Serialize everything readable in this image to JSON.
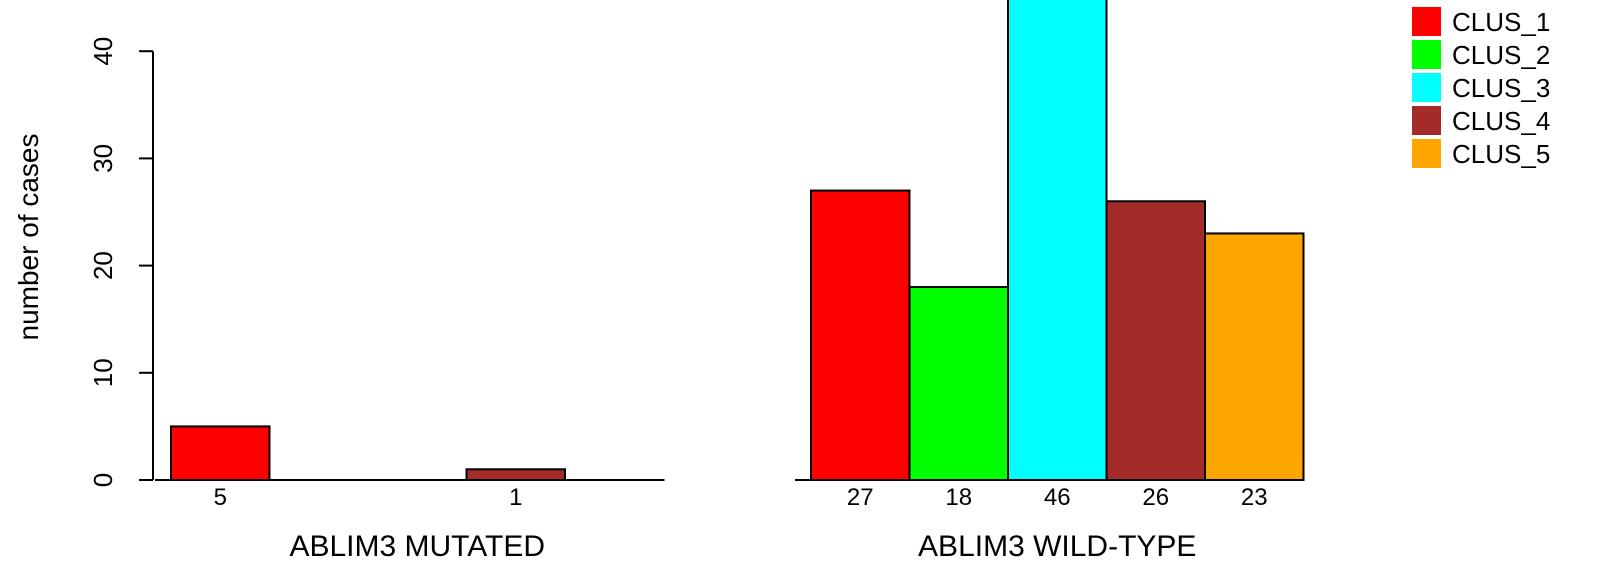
{
  "chart_data": {
    "type": "bar",
    "ylabel": "number of cases",
    "ylim": [
      0,
      40
    ],
    "yticks": [
      0,
      10,
      20,
      30,
      40
    ],
    "grid": false,
    "legend_position": "top-right",
    "series": [
      {
        "name": "CLUS_1",
        "color": "#ff0000"
      },
      {
        "name": "CLUS_2",
        "color": "#00ff00"
      },
      {
        "name": "CLUS_3",
        "color": "#00ffff"
      },
      {
        "name": "CLUS_4",
        "color": "#a52a2a"
      },
      {
        "name": "CLUS_5",
        "color": "#ffa500"
      }
    ],
    "panels": [
      {
        "label": "ABLIM3 MUTATED",
        "values": [
          5,
          0,
          0,
          1,
          0
        ],
        "value_labels": [
          "5",
          "",
          "",
          "1",
          ""
        ]
      },
      {
        "label": "ABLIM3 WILD-TYPE",
        "values": [
          27,
          18,
          46,
          26,
          23
        ],
        "value_labels": [
          "27",
          "18",
          "46",
          "26",
          "23"
        ]
      }
    ]
  }
}
